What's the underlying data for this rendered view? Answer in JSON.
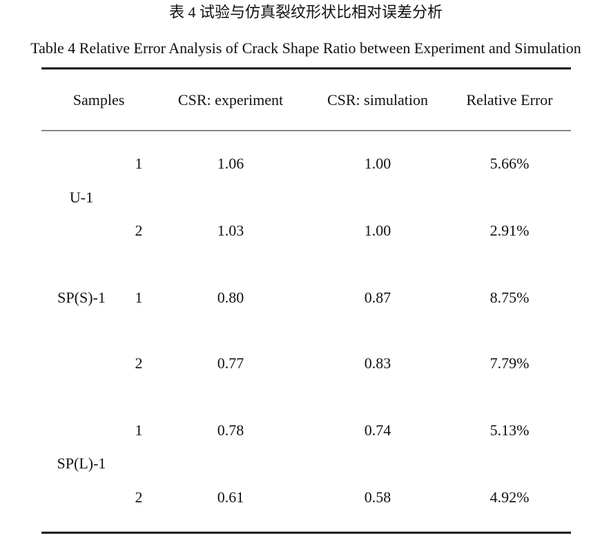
{
  "title_cn": "表 4  试验与仿真裂纹形状比相对误差分析",
  "title_en": "Table 4 Relative Error Analysis of Crack Shape Ratio between Experiment and Simulation",
  "table": {
    "headers": [
      "Samples",
      "CSR: experiment",
      "CSR: simulation",
      "Relative Error"
    ],
    "groups": [
      {
        "sample": "U-1",
        "rows": [
          [
            "1",
            "1.06",
            "1.00",
            "5.66%"
          ],
          [
            "2",
            "1.03",
            "1.00",
            "2.91%"
          ]
        ]
      },
      {
        "sample": "SP(S)-1",
        "rows": [
          [
            "1",
            "0.80",
            "0.87",
            "8.75%"
          ],
          [
            "2",
            "0.77",
            "0.83",
            "7.79%"
          ]
        ]
      },
      {
        "sample": "SP(L)-1",
        "rows": [
          [
            "1",
            "0.78",
            "0.74",
            "5.13%"
          ],
          [
            "2",
            "0.61",
            "0.58",
            "4.92%"
          ]
        ]
      }
    ]
  }
}
